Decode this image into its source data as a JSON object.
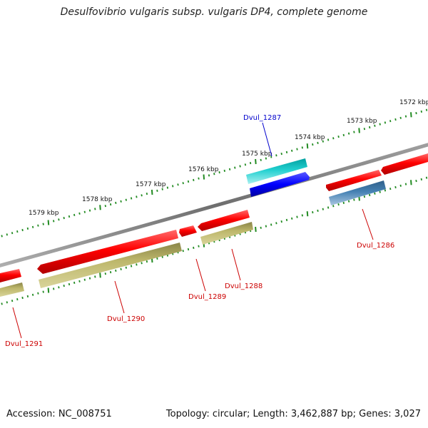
{
  "title": "Desulfovibrio vulgaris subsp. vulgaris DP4, complete genome",
  "footer": {
    "accession": "Accession: NC_008751",
    "topology": "Topology: circular; Length: 3,462,887 bp; Genes: 3,027"
  },
  "colors": {
    "backbone": "#808080",
    "gene_red": "#ff0000",
    "gene_cds": "#bdb76b",
    "gene_blue": "#0000ff",
    "gene_cyan": "#00c8c8",
    "gene_steel": "#4682b4",
    "label_red": "#cc0000",
    "label_blue": "#0000cc",
    "tick": "#228b22"
  },
  "kbp_labels": [
    "1572 kbp",
    "1573 kbp",
    "1574 kbp",
    "1575 kbp",
    "1576 kbp",
    "1577 kbp",
    "1578 kbp",
    "1579 kbp"
  ],
  "genes": [
    {
      "name": "Dvul_1287",
      "color": "blue"
    },
    {
      "name": "Dvul_1286",
      "color": "red"
    },
    {
      "name": "Dvul_1288",
      "color": "red"
    },
    {
      "name": "Dvul_1289",
      "color": "red"
    },
    {
      "name": "Dvul_1290",
      "color": "red"
    },
    {
      "name": "Dvul_1291",
      "color": "red"
    }
  ]
}
